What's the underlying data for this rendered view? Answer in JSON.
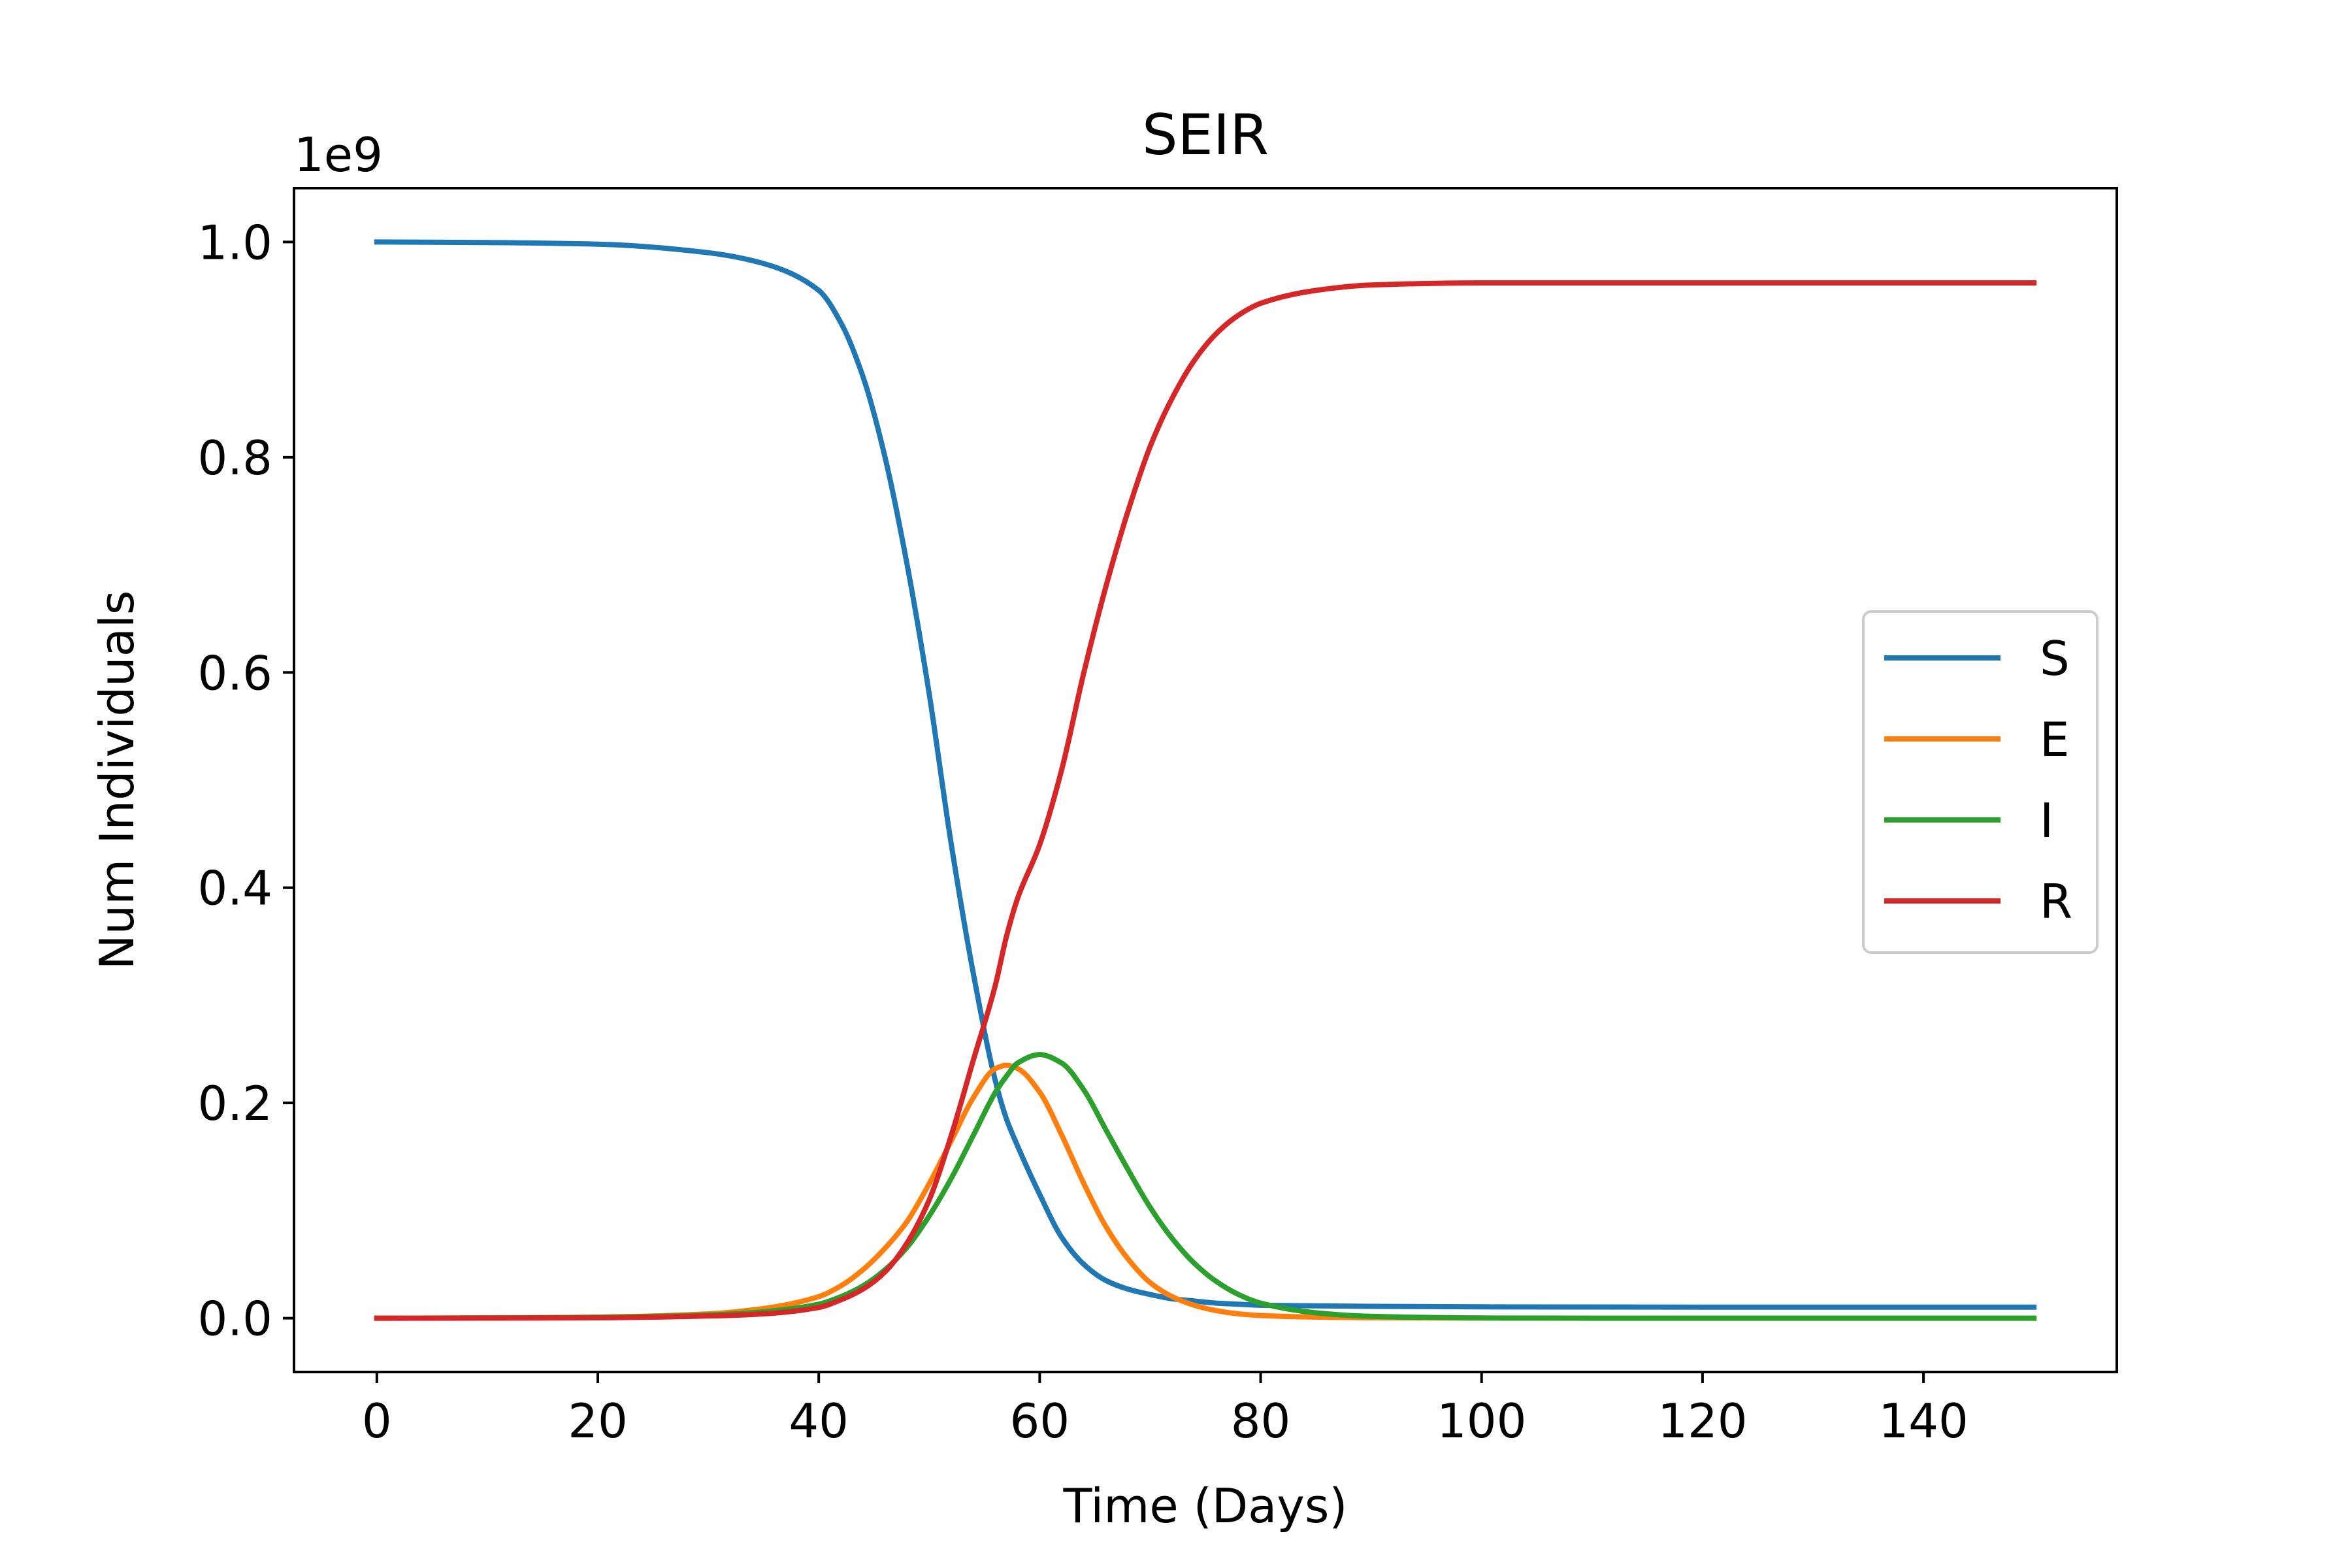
{
  "chart_data": {
    "type": "line",
    "title": "SEIR",
    "xlabel": "Time (Days)",
    "ylabel": "Num Individuals",
    "y_offset_label": "1e9",
    "xlim": [
      -7.5,
      157.5
    ],
    "ylim": [
      -0.05,
      1.05
    ],
    "x_ticks": [
      0,
      20,
      40,
      60,
      80,
      100,
      120,
      140
    ],
    "x_tick_labels": [
      "0",
      "20",
      "40",
      "60",
      "80",
      "100",
      "120",
      "140"
    ],
    "y_ticks": [
      0.0,
      0.2,
      0.4,
      0.6,
      0.8,
      1.0
    ],
    "y_tick_labels": [
      "0.0",
      "0.2",
      "0.4",
      "0.6",
      "0.8",
      "1.0"
    ],
    "grid": false,
    "legend_position": "center-right",
    "x": [
      0,
      10,
      20,
      30,
      35,
      40,
      42,
      44,
      46,
      48,
      50,
      52,
      54,
      56,
      57,
      58,
      60,
      62,
      64,
      66,
      68,
      70,
      72,
      74,
      76,
      78,
      80,
      85,
      90,
      100,
      110,
      120,
      130,
      140,
      150
    ],
    "series": [
      {
        "name": "S",
        "color": "#1f77b4",
        "values": [
          1.0,
          0.9995,
          0.998,
          0.99,
          0.98,
          0.955,
          0.925,
          0.875,
          0.8,
          0.7,
          0.58,
          0.44,
          0.32,
          0.22,
          0.185,
          0.16,
          0.115,
          0.075,
          0.05,
          0.035,
          0.027,
          0.022,
          0.018,
          0.016,
          0.014,
          0.013,
          0.012,
          0.0115,
          0.011,
          0.0105,
          0.0104,
          0.0103,
          0.0103,
          0.0103,
          0.0103
        ]
      },
      {
        "name": "E",
        "color": "#ff7f0e",
        "values": [
          0.0,
          0.0003,
          0.001,
          0.004,
          0.009,
          0.02,
          0.03,
          0.045,
          0.065,
          0.09,
          0.125,
          0.165,
          0.205,
          0.232,
          0.235,
          0.232,
          0.21,
          0.17,
          0.125,
          0.085,
          0.055,
          0.033,
          0.02,
          0.012,
          0.007,
          0.004,
          0.0025,
          0.001,
          0.0004,
          0.0001,
          0.0,
          0.0,
          0.0,
          0.0,
          0.0
        ]
      },
      {
        "name": "I",
        "color": "#2ca02c",
        "values": [
          0.0,
          0.0002,
          0.0008,
          0.003,
          0.006,
          0.013,
          0.02,
          0.03,
          0.045,
          0.066,
          0.095,
          0.13,
          0.17,
          0.21,
          0.225,
          0.237,
          0.245,
          0.237,
          0.212,
          0.175,
          0.138,
          0.103,
          0.074,
          0.051,
          0.034,
          0.022,
          0.014,
          0.005,
          0.0017,
          0.0002,
          0.0,
          0.0,
          0.0,
          0.0,
          0.0
        ]
      },
      {
        "name": "R",
        "color": "#d62728",
        "values": [
          0.0,
          0.0001,
          0.0004,
          0.002,
          0.004,
          0.01,
          0.017,
          0.027,
          0.043,
          0.07,
          0.11,
          0.17,
          0.24,
          0.31,
          0.355,
          0.39,
          0.44,
          0.51,
          0.6,
          0.68,
          0.75,
          0.81,
          0.855,
          0.89,
          0.915,
          0.932,
          0.943,
          0.955,
          0.96,
          0.962,
          0.962,
          0.962,
          0.962,
          0.962,
          0.962
        ]
      }
    ]
  }
}
